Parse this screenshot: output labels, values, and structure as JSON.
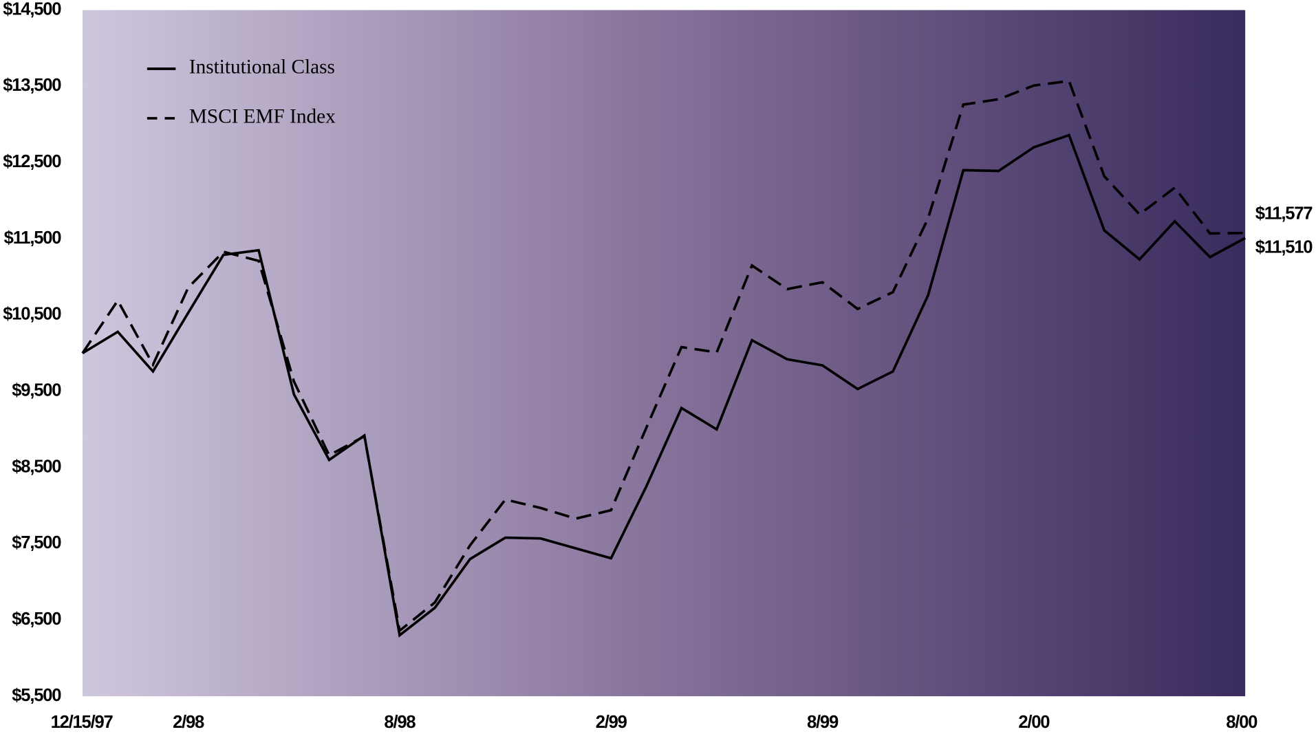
{
  "chart_data": {
    "type": "line",
    "categories": [
      "12/15/97",
      null,
      null,
      "2/98",
      null,
      null,
      null,
      null,
      null,
      "8/98",
      null,
      null,
      null,
      null,
      null,
      "2/99",
      null,
      null,
      null,
      null,
      null,
      "8/99",
      null,
      null,
      null,
      null,
      null,
      "2/00",
      null,
      null,
      null,
      null,
      null,
      "8/00"
    ],
    "series": [
      {
        "name": "Institutional Class",
        "color": "#000000",
        "dash": false,
        "values": [
          10000,
          10280,
          9760,
          10530,
          11290,
          11350,
          9460,
          8600,
          8920,
          6300,
          6660,
          7300,
          7580,
          7570,
          7440,
          7310,
          8250,
          9280,
          9000,
          10170,
          9920,
          9840,
          9530,
          9760,
          10760,
          12400,
          12390,
          12700,
          12860,
          11610,
          11230,
          11730,
          11260,
          11510
        ],
        "value_labels": {
          "33": "$11,510"
        }
      },
      {
        "name": "MSCI EMF Index",
        "color": "#000000",
        "dash": true,
        "values": [
          10000,
          10690,
          9850,
          10860,
          11330,
          11210,
          9630,
          8660,
          8910,
          6360,
          6730,
          7480,
          8080,
          7970,
          7830,
          7940,
          9020,
          10080,
          10010,
          11150,
          10840,
          10930,
          10580,
          10800,
          11770,
          13260,
          13330,
          13510,
          13570,
          12320,
          11820,
          12170,
          11570,
          11577
        ],
        "value_labels": {
          "33": "$11,577"
        }
      }
    ],
    "ylim": [
      5500,
      14500
    ],
    "yticks": [
      {
        "value": 5500,
        "label": "$5,500"
      },
      {
        "value": 6500,
        "label": "$6,500"
      },
      {
        "value": 7500,
        "label": "$7,500"
      },
      {
        "value": 8500,
        "label": "$8,500"
      },
      {
        "value": 9500,
        "label": "$9,500"
      },
      {
        "value": 10500,
        "label": "$10,500"
      },
      {
        "value": 11500,
        "label": "$11,500"
      },
      {
        "value": 12500,
        "label": "$12,500"
      },
      {
        "value": 13500,
        "label": "$13,500"
      },
      {
        "value": 14500,
        "label": "$14,500"
      }
    ],
    "grid": false,
    "legend": "upper left"
  }
}
